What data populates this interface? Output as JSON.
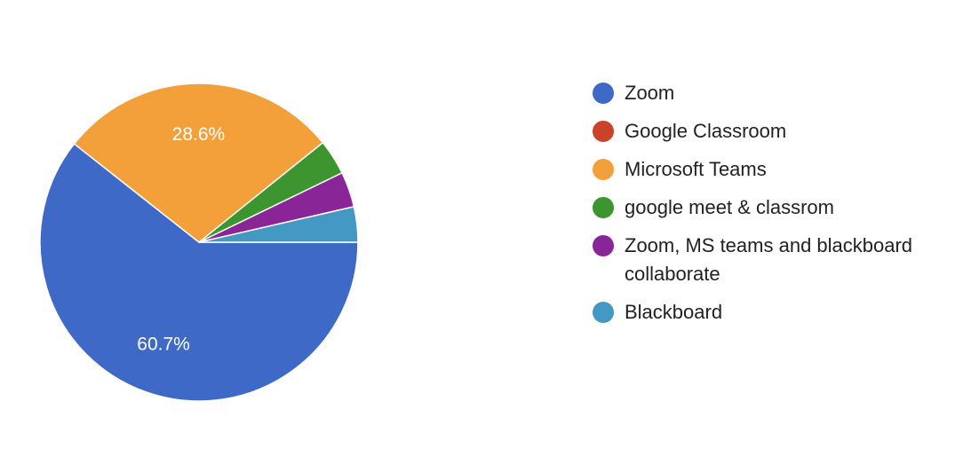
{
  "chart_data": {
    "type": "pie",
    "slices": [
      {
        "label": "Zoom",
        "value": 60.7,
        "display": "60.7%",
        "color": "#3e69c6"
      },
      {
        "label": "Google Classroom",
        "value": 0,
        "display": "",
        "color": "#cc4228"
      },
      {
        "label": "Microsoft Teams",
        "value": 28.6,
        "display": "28.6%",
        "color": "#f4a03a"
      },
      {
        "label": "google meet & classrom",
        "value": 3.6,
        "display": "",
        "color": "#3d952f"
      },
      {
        "label": "Zoom, MS teams and blackboard collaborate",
        "value": 3.6,
        "display": "",
        "color": "#8a2597"
      },
      {
        "label": "Blackboard",
        "value": 3.6,
        "display": "",
        "color": "#4398c4"
      }
    ],
    "legend_position": "right"
  }
}
